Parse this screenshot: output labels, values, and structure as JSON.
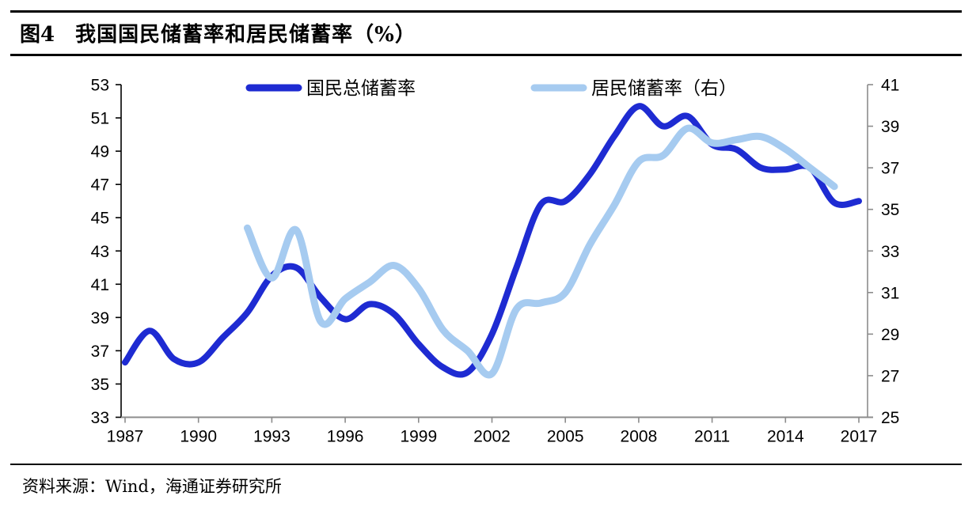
{
  "figure": {
    "title_prefix": "图4",
    "title": "我国国民储蓄率和居民储蓄率（%）",
    "source_label": "资料来源：Wind，海通证券研究所"
  },
  "colors": {
    "primary_line": "#1E2BD2",
    "secondary_line": "#A6CBF0",
    "axis_gray": "#8C8C8C",
    "axis_black": "#000000",
    "text": "#000000"
  },
  "chart_data": {
    "type": "line",
    "title": "我国国民储蓄率和居民储蓄率（%）",
    "legend_position": "top",
    "grid": false,
    "x_axis": {
      "ticks": [
        1987,
        1990,
        1993,
        1996,
        1999,
        2002,
        2005,
        2008,
        2011,
        2014,
        2017
      ],
      "min": 1987,
      "max": 2017
    },
    "left_axis": {
      "min": 33,
      "max": 53,
      "step": 2,
      "ticks": [
        53,
        51,
        49,
        47,
        45,
        43,
        41,
        39,
        37,
        35,
        33
      ]
    },
    "right_axis": {
      "min": 25,
      "max": 41,
      "step": 2,
      "ticks": [
        41,
        39,
        37,
        35,
        33,
        31,
        29,
        27,
        25
      ]
    },
    "series": [
      {
        "name": "国民总储蓄率",
        "axis": "left",
        "color": "#1E2BD2",
        "line_width": 8,
        "years": [
          1987,
          1988,
          1989,
          1990,
          1991,
          1992,
          1993,
          1994,
          1995,
          1996,
          1997,
          1998,
          1999,
          2000,
          2001,
          2002,
          2003,
          2004,
          2005,
          2006,
          2007,
          2008,
          2009,
          2010,
          2011,
          2012,
          2013,
          2014,
          2015,
          2016,
          2017
        ],
        "values": [
          36.3,
          38.2,
          36.5,
          36.3,
          37.8,
          39.3,
          41.5,
          42.0,
          40.2,
          38.9,
          39.8,
          39.2,
          37.4,
          36.0,
          35.7,
          38.0,
          42.0,
          45.8,
          46.0,
          47.6,
          49.9,
          51.7,
          50.5,
          51.1,
          49.4,
          49.1,
          48.0,
          47.9,
          48.0,
          45.9,
          46.0
        ]
      },
      {
        "name": "居民储蓄率（右）",
        "axis": "right",
        "color": "#A6CBF0",
        "line_width": 9,
        "years": [
          1992,
          1993,
          1994,
          1995,
          1996,
          1997,
          1998,
          1999,
          2000,
          2001,
          2002,
          2003,
          2004,
          2005,
          2006,
          2007,
          2008,
          2009,
          2010,
          2011,
          2012,
          2013,
          2014,
          2015,
          2016
        ],
        "values": [
          34.1,
          31.7,
          34.0,
          29.6,
          30.7,
          31.5,
          32.3,
          31.2,
          29.2,
          28.2,
          27.1,
          30.2,
          30.5,
          31.0,
          33.3,
          35.2,
          37.3,
          37.6,
          38.9,
          38.2,
          38.35,
          38.5,
          37.9,
          37.0,
          36.1
        ]
      }
    ]
  }
}
